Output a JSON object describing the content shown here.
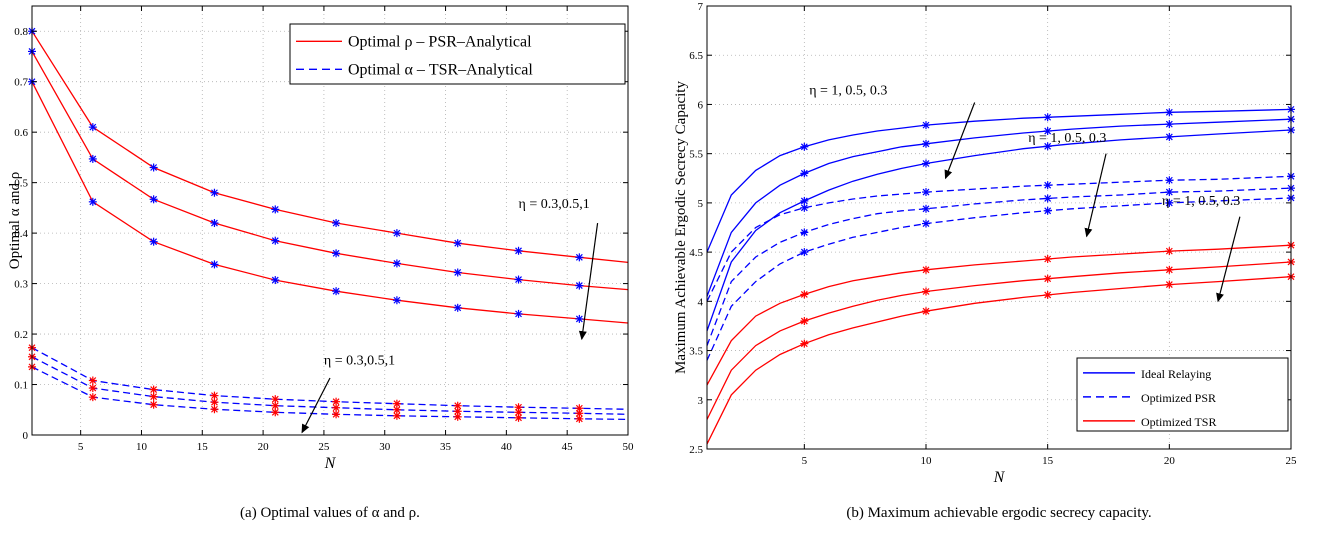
{
  "colors": {
    "red": "#ff0000",
    "blue": "#0000ff",
    "grid": "#b0b0b0",
    "arrow": "#000000"
  },
  "chart_data": [
    {
      "type": "line",
      "caption": "(a) Optimal values of α and ρ.",
      "xlabel": "N",
      "ylabel": "Optimal α and ρ",
      "xlim": [
        1,
        50
      ],
      "ylim": [
        0,
        0.85
      ],
      "xticks": [
        5,
        10,
        15,
        20,
        25,
        30,
        35,
        40,
        45,
        50
      ],
      "yticks": [
        0,
        0.1,
        0.2,
        0.3,
        0.4,
        0.5,
        0.6,
        0.7,
        0.8
      ],
      "ytick_labels": [
        "0",
        "0.1",
        "0.2",
        "0.3",
        "0.4",
        "0.5",
        "0.6",
        "0.7",
        "0.8"
      ],
      "grid": true,
      "legend_position": "top-right",
      "legend": [
        {
          "text": "Optimal ρ – PSR–Analytical",
          "color": "#ff0000",
          "dash": false
        },
        {
          "text": "Optimal α – TSR–Analytical",
          "color": "#0000ff",
          "dash": true
        }
      ],
      "annotations": [
        {
          "text": "η = 0.3,0.5,1",
          "at": [
            41,
            0.45
          ],
          "arrow_from": [
            47.5,
            0.42
          ],
          "arrow_to": [
            46.2,
            0.19
          ]
        },
        {
          "text": "η = 0.3,0.5,1",
          "at": [
            25,
            0.14
          ],
          "arrow_from": [
            25.5,
            0.113
          ],
          "arrow_to": [
            23.2,
            0.005
          ]
        }
      ],
      "series": [
        {
          "color": "#ff0000",
          "dash": false,
          "marker_color": "#0000ff",
          "x": [
            1,
            6,
            11,
            16,
            21,
            26,
            31,
            36,
            41,
            46,
            50
          ],
          "y": [
            0.8,
            0.61,
            0.53,
            0.48,
            0.447,
            0.42,
            0.4,
            0.38,
            0.365,
            0.352,
            0.342
          ]
        },
        {
          "color": "#ff0000",
          "dash": false,
          "marker_color": "#0000ff",
          "x": [
            1,
            6,
            11,
            16,
            21,
            26,
            31,
            36,
            41,
            46,
            50
          ],
          "y": [
            0.76,
            0.547,
            0.467,
            0.42,
            0.385,
            0.36,
            0.34,
            0.322,
            0.308,
            0.296,
            0.288
          ]
        },
        {
          "color": "#ff0000",
          "dash": false,
          "marker_color": "#0000ff",
          "x": [
            1,
            6,
            11,
            16,
            21,
            26,
            31,
            36,
            41,
            46,
            50
          ],
          "y": [
            0.7,
            0.462,
            0.383,
            0.338,
            0.307,
            0.285,
            0.267,
            0.252,
            0.24,
            0.23,
            0.222
          ]
        },
        {
          "color": "#0000ff",
          "dash": true,
          "marker_color": "#ff0000",
          "x": [
            1,
            6,
            11,
            16,
            21,
            26,
            31,
            36,
            41,
            46,
            50
          ],
          "y": [
            0.173,
            0.108,
            0.09,
            0.078,
            0.071,
            0.066,
            0.062,
            0.058,
            0.055,
            0.053,
            0.051
          ]
        },
        {
          "color": "#0000ff",
          "dash": true,
          "marker_color": "#ff0000",
          "x": [
            1,
            6,
            11,
            16,
            21,
            26,
            31,
            36,
            41,
            46,
            50
          ],
          "y": [
            0.155,
            0.093,
            0.076,
            0.065,
            0.058,
            0.054,
            0.05,
            0.047,
            0.045,
            0.043,
            0.041
          ]
        },
        {
          "color": "#0000ff",
          "dash": true,
          "marker_color": "#ff0000",
          "x": [
            1,
            6,
            11,
            16,
            21,
            26,
            31,
            36,
            41,
            46,
            50
          ],
          "y": [
            0.135,
            0.075,
            0.06,
            0.051,
            0.045,
            0.041,
            0.038,
            0.036,
            0.034,
            0.032,
            0.031
          ]
        }
      ]
    },
    {
      "type": "line",
      "caption": "(b) Maximum achievable ergodic secrecy capacity.",
      "xlabel": "N",
      "ylabel": "Maximum Achievable Ergodic Secrecy Capacity",
      "xlim": [
        1,
        25
      ],
      "ylim": [
        2.5,
        7
      ],
      "xticks": [
        5,
        10,
        15,
        20,
        25
      ],
      "yticks": [
        2.5,
        3,
        3.5,
        4,
        4.5,
        5,
        5.5,
        6,
        6.5,
        7
      ],
      "ytick_labels": [
        "2.5",
        "3",
        "3.5",
        "4",
        "4.5",
        "5",
        "5.5",
        "6",
        "6.5",
        "7"
      ],
      "grid": true,
      "legend_position": "bottom-right",
      "legend": [
        {
          "text": "Ideal Relaying",
          "color": "#0000ff",
          "dash": false
        },
        {
          "text": "Optimized PSR",
          "color": "#0000ff",
          "dash": true
        },
        {
          "text": "Optimized TSR",
          "color": "#ff0000",
          "dash": false
        }
      ],
      "annotations": [
        {
          "text": "η = 1, 0.5, 0.3",
          "at": [
            5.2,
            6.1
          ],
          "arrow_from": [
            12.0,
            6.02
          ],
          "arrow_to": [
            10.8,
            5.25
          ]
        },
        {
          "text": "η = 1, 0.5, 0.3",
          "at": [
            14.2,
            5.62
          ],
          "arrow_from": [
            17.4,
            5.5
          ],
          "arrow_to": [
            16.6,
            4.66
          ]
        },
        {
          "text": "η = 1, 0.5, 0.3",
          "at": [
            19.7,
            4.98
          ],
          "arrow_from": [
            22.9,
            4.86
          ],
          "arrow_to": [
            22.0,
            4.0
          ]
        }
      ],
      "series": [
        {
          "color": "#0000ff",
          "dash": false,
          "marker_color": "#0000ff",
          "markers_at": [
            5,
            10,
            15,
            20,
            25
          ],
          "x": [
            1,
            2,
            3,
            4,
            5,
            6,
            7,
            8,
            9,
            10,
            12,
            14,
            16,
            18,
            20,
            22,
            25
          ],
          "y": [
            4.5,
            5.08,
            5.33,
            5.48,
            5.57,
            5.64,
            5.69,
            5.73,
            5.76,
            5.79,
            5.83,
            5.86,
            5.88,
            5.9,
            5.92,
            5.93,
            5.95
          ]
        },
        {
          "color": "#0000ff",
          "dash": false,
          "marker_color": "#0000ff",
          "markers_at": [
            5,
            10,
            15,
            20,
            25
          ],
          "x": [
            1,
            2,
            3,
            4,
            5,
            6,
            7,
            8,
            9,
            10,
            12,
            14,
            16,
            18,
            20,
            22,
            25
          ],
          "y": [
            4.05,
            4.7,
            5.0,
            5.18,
            5.3,
            5.4,
            5.47,
            5.52,
            5.57,
            5.6,
            5.66,
            5.71,
            5.75,
            5.78,
            5.8,
            5.82,
            5.85
          ]
        },
        {
          "color": "#0000ff",
          "dash": false,
          "marker_color": "#0000ff",
          "markers_at": [
            5,
            10,
            15,
            20,
            25
          ],
          "x": [
            1,
            2,
            3,
            4,
            5,
            6,
            7,
            8,
            9,
            10,
            12,
            14,
            16,
            18,
            20,
            22,
            25
          ],
          "y": [
            3.7,
            4.4,
            4.72,
            4.9,
            5.02,
            5.13,
            5.22,
            5.29,
            5.35,
            5.4,
            5.48,
            5.55,
            5.6,
            5.64,
            5.67,
            5.7,
            5.74
          ]
        },
        {
          "color": "#0000ff",
          "dash": true,
          "marker_color": "#0000ff",
          "markers_at": [
            5,
            10,
            15,
            20,
            25
          ],
          "x": [
            1,
            2,
            3,
            4,
            5,
            6,
            7,
            8,
            9,
            10,
            12,
            14,
            16,
            18,
            20,
            22,
            25
          ],
          "y": [
            4.0,
            4.5,
            4.75,
            4.88,
            4.95,
            5.0,
            5.04,
            5.07,
            5.09,
            5.11,
            5.14,
            5.17,
            5.19,
            5.21,
            5.23,
            5.24,
            5.27
          ]
        },
        {
          "color": "#0000ff",
          "dash": true,
          "marker_color": "#0000ff",
          "markers_at": [
            5,
            10,
            15,
            20,
            25
          ],
          "x": [
            1,
            2,
            3,
            4,
            5,
            6,
            7,
            8,
            9,
            10,
            12,
            14,
            16,
            18,
            20,
            22,
            25
          ],
          "y": [
            3.55,
            4.2,
            4.45,
            4.6,
            4.7,
            4.78,
            4.84,
            4.89,
            4.92,
            4.94,
            4.99,
            5.03,
            5.06,
            5.08,
            5.11,
            5.12,
            5.15
          ]
        },
        {
          "color": "#0000ff",
          "dash": true,
          "marker_color": "#0000ff",
          "markers_at": [
            5,
            10,
            15,
            20,
            25
          ],
          "x": [
            1,
            2,
            3,
            4,
            5,
            6,
            7,
            8,
            9,
            10,
            12,
            14,
            16,
            18,
            20,
            22,
            25
          ],
          "y": [
            3.4,
            3.95,
            4.2,
            4.38,
            4.5,
            4.58,
            4.65,
            4.7,
            4.75,
            4.79,
            4.85,
            4.9,
            4.94,
            4.97,
            5.0,
            5.02,
            5.05
          ]
        },
        {
          "color": "#ff0000",
          "dash": false,
          "marker_color": "#ff0000",
          "markers_at": [
            5,
            10,
            15,
            20,
            25
          ],
          "x": [
            1,
            2,
            3,
            4,
            5,
            6,
            7,
            8,
            9,
            10,
            12,
            14,
            16,
            18,
            20,
            22,
            25
          ],
          "y": [
            3.15,
            3.6,
            3.85,
            3.98,
            4.07,
            4.15,
            4.21,
            4.25,
            4.29,
            4.32,
            4.37,
            4.41,
            4.45,
            4.48,
            4.51,
            4.53,
            4.57
          ]
        },
        {
          "color": "#ff0000",
          "dash": false,
          "marker_color": "#ff0000",
          "markers_at": [
            5,
            10,
            15,
            20,
            25
          ],
          "x": [
            1,
            2,
            3,
            4,
            5,
            6,
            7,
            8,
            9,
            10,
            12,
            14,
            16,
            18,
            20,
            22,
            25
          ],
          "y": [
            2.8,
            3.3,
            3.55,
            3.7,
            3.8,
            3.88,
            3.95,
            4.01,
            4.06,
            4.1,
            4.16,
            4.21,
            4.25,
            4.29,
            4.32,
            4.35,
            4.4
          ]
        },
        {
          "color": "#ff0000",
          "dash": false,
          "marker_color": "#ff0000",
          "markers_at": [
            5,
            10,
            15,
            20,
            25
          ],
          "x": [
            1,
            2,
            3,
            4,
            5,
            6,
            7,
            8,
            9,
            10,
            12,
            14,
            16,
            18,
            20,
            22,
            25
          ],
          "y": [
            2.55,
            3.05,
            3.3,
            3.46,
            3.57,
            3.66,
            3.73,
            3.79,
            3.85,
            3.9,
            3.98,
            4.04,
            4.09,
            4.13,
            4.17,
            4.2,
            4.25
          ]
        }
      ]
    }
  ]
}
